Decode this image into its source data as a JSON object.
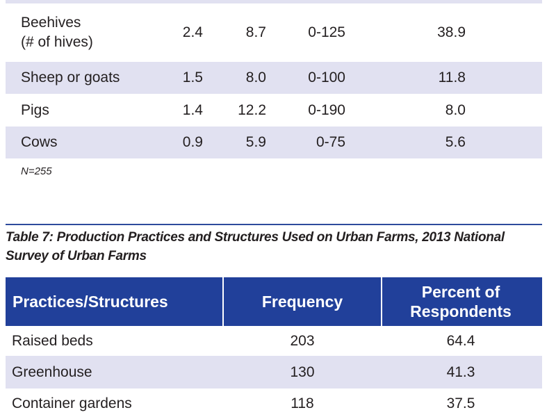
{
  "table6": {
    "rows": [
      {
        "label": "Beehives",
        "label2": "(# of hives)",
        "c1": "2.4",
        "c2": "8.7",
        "c3": "0-125",
        "c4": "38.9"
      },
      {
        "label": "Sheep or goats",
        "c1": "1.5",
        "c2": "8.0",
        "c3": "0-100",
        "c4": "11.8"
      },
      {
        "label": "Pigs",
        "c1": "1.4",
        "c2": "12.2",
        "c3": "0-190",
        "c4": "8.0"
      },
      {
        "label": "Cows",
        "c1": "0.9",
        "c2": "5.9",
        "c3": "0-75",
        "c4": "5.6"
      }
    ],
    "note": "N=255"
  },
  "table7": {
    "title": "Table 7: Production Practices and Structures Used on Urban Farms, 2013 National Survey of Urban Farms",
    "headers": [
      "Practices/Structures",
      "Frequency",
      "Percent of Respondents"
    ],
    "rows": [
      {
        "label": "Raised beds",
        "freq": "203",
        "pct": "64.4"
      },
      {
        "label": "Greenhouse",
        "freq": "130",
        "pct": "41.3"
      },
      {
        "label": "Container gardens",
        "freq": "118",
        "pct": "37.5"
      }
    ]
  },
  "colors": {
    "header": "#21409a",
    "band": "#e1e1f1"
  }
}
